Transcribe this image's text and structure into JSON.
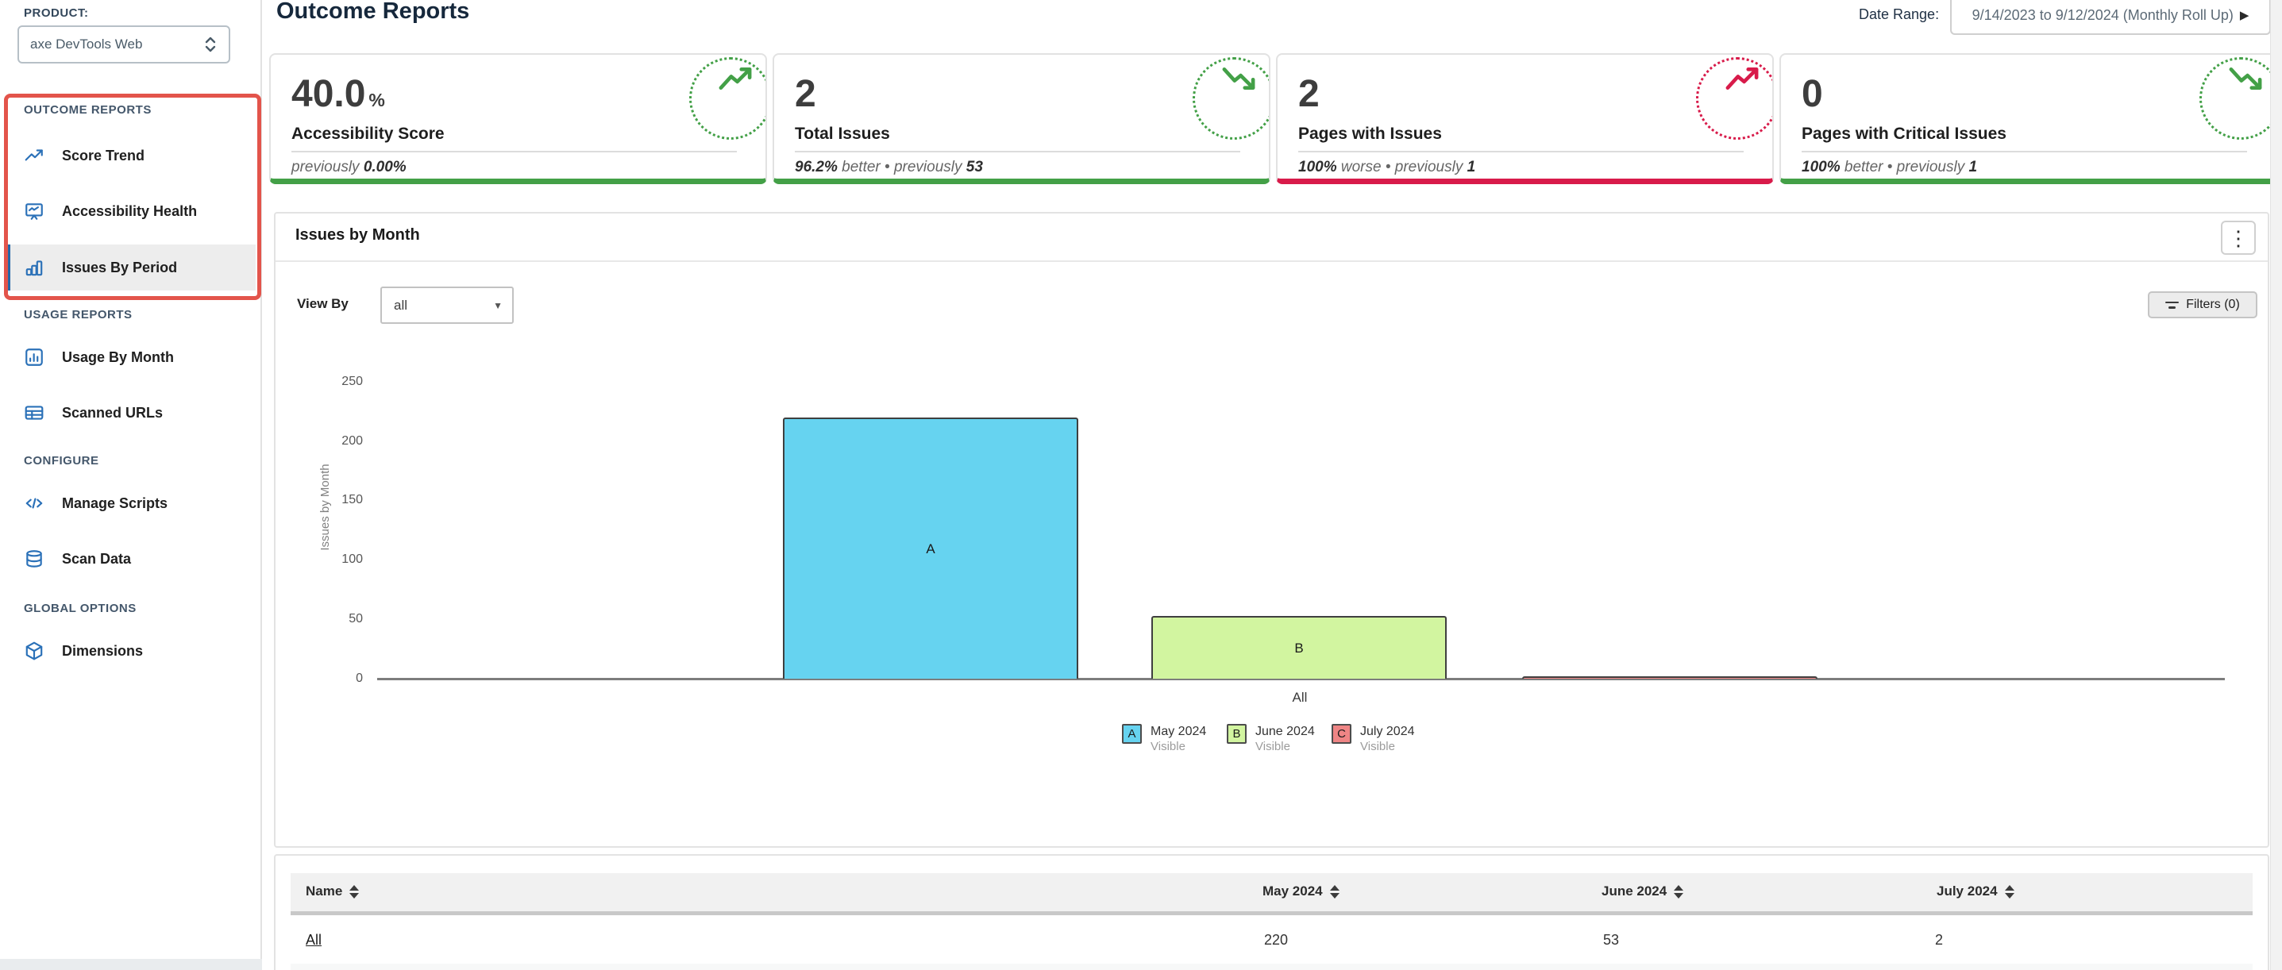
{
  "colors": {
    "green": "#43a047",
    "red": "#d81b4a",
    "accent_blue": "#2b71b8",
    "annotation": "#e3544b"
  },
  "icons": {
    "select_caret": "▼",
    "date_caret": "▶",
    "kebab": "⋮"
  },
  "product": {
    "label": "PRODUCT:",
    "value": "axe DevTools Web"
  },
  "sidebar": {
    "sections": [
      {
        "title": "OUTCOME REPORTS",
        "highlighted": true,
        "items": [
          {
            "label": "Score Trend",
            "icon": "trend-up-icon",
            "active": false
          },
          {
            "label": "Accessibility Health",
            "icon": "presentation-chart-icon",
            "active": false
          },
          {
            "label": "Issues By Period",
            "icon": "bar-chart-icon",
            "active": true
          }
        ]
      },
      {
        "title": "USAGE REPORTS",
        "items": [
          {
            "label": "Usage By Month",
            "icon": "chart-square-icon",
            "active": false
          },
          {
            "label": "Scanned URLs",
            "icon": "table-icon",
            "active": false
          }
        ]
      },
      {
        "title": "CONFIGURE",
        "items": [
          {
            "label": "Manage Scripts",
            "icon": "code-icon",
            "active": false
          },
          {
            "label": "Scan Data",
            "icon": "database-icon",
            "active": false
          }
        ]
      },
      {
        "title": "GLOBAL OPTIONS",
        "items": [
          {
            "label": "Dimensions",
            "icon": "cube-icon",
            "active": false
          }
        ]
      }
    ]
  },
  "header": {
    "title": "Outcome Reports",
    "date_range_label": "Date Range:",
    "date_range_value": "9/14/2023 to 9/12/2024 (Monthly Roll Up)"
  },
  "kpis": [
    {
      "value": "40.0",
      "unit": "%",
      "label": "Accessibility Score",
      "color": "green",
      "trend": "up",
      "sub": [
        {
          "text": "previously ",
          "style": "muted"
        },
        {
          "text": "0.00%",
          "style": "strong"
        }
      ]
    },
    {
      "value": "2",
      "unit": "",
      "label": "Total Issues",
      "color": "green",
      "trend": "down",
      "sub": [
        {
          "text": "96.2%",
          "style": "strong"
        },
        {
          "text": " better • previously ",
          "style": "muted"
        },
        {
          "text": "53",
          "style": "strong"
        }
      ]
    },
    {
      "value": "2",
      "unit": "",
      "label": "Pages with Issues",
      "color": "red",
      "trend": "up",
      "sub": [
        {
          "text": "100%",
          "style": "strong"
        },
        {
          "text": " worse • previously ",
          "style": "muted"
        },
        {
          "text": "1",
          "style": "strong"
        }
      ]
    },
    {
      "value": "0",
      "unit": "",
      "label": "Pages with Critical Issues",
      "color": "green",
      "trend": "down",
      "sub": [
        {
          "text": "100%",
          "style": "strong"
        },
        {
          "text": " better • previously ",
          "style": "muted"
        },
        {
          "text": "1",
          "style": "strong"
        }
      ]
    }
  ],
  "panel": {
    "title": "Issues by Month",
    "view_by_label": "View By",
    "view_by_value": "all",
    "filters_label": "Filters (0)"
  },
  "chart_data": {
    "type": "bar",
    "title": "Issues by Month",
    "categories": [
      "All"
    ],
    "series": [
      {
        "key": "A",
        "name": "May 2024",
        "status": "Visible",
        "values": [
          220
        ],
        "color": "#66d3f0"
      },
      {
        "key": "B",
        "name": "June 2024",
        "status": "Visible",
        "values": [
          53
        ],
        "color": "#d2f5a0"
      },
      {
        "key": "C",
        "name": "July 2024",
        "status": "Visible",
        "values": [
          2
        ],
        "color": "#ef8585"
      }
    ],
    "xlabel": "",
    "ylabel": "Issues by Month",
    "ylim": [
      0,
      250
    ],
    "yticks": [
      0,
      50,
      100,
      150,
      200,
      250
    ],
    "grid": false,
    "legend_position": "bottom"
  },
  "table": {
    "columns": [
      "Name",
      "May 2024",
      "June 2024",
      "July 2024"
    ],
    "rows": [
      {
        "name": "All",
        "values": [
          "220",
          "53",
          "2"
        ]
      }
    ]
  }
}
